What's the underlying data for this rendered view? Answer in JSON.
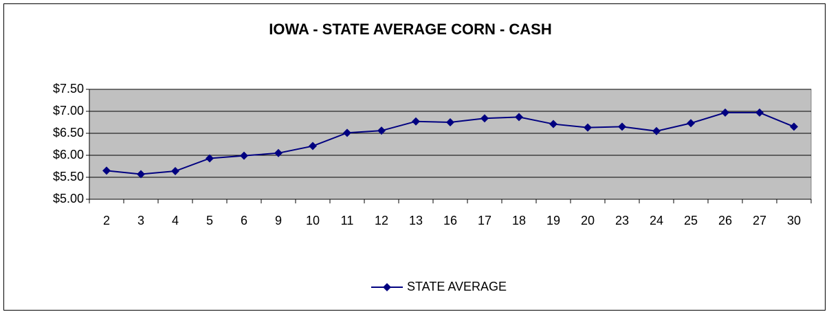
{
  "chart_data": {
    "type": "line",
    "title": "IOWA - STATE AVERAGE CORN - CASH",
    "categories": [
      "2",
      "3",
      "4",
      "5",
      "6",
      "9",
      "10",
      "11",
      "12",
      "13",
      "16",
      "17",
      "18",
      "19",
      "20",
      "23",
      "24",
      "25",
      "26",
      "27",
      "30"
    ],
    "series": [
      {
        "name": "STATE AVERAGE",
        "color": "#000080",
        "values": [
          5.65,
          5.57,
          5.64,
          5.93,
          5.99,
          6.05,
          6.21,
          6.51,
          6.56,
          6.77,
          6.75,
          6.84,
          6.87,
          6.71,
          6.63,
          6.65,
          6.55,
          6.73,
          6.97,
          6.97,
          6.65
        ]
      }
    ],
    "ylim": [
      5,
      7.5
    ],
    "yticks": [
      {
        "value": 5,
        "label": "$5.00"
      },
      {
        "value": 5.5,
        "label": "$5.50"
      },
      {
        "value": 6,
        "label": "$6.00"
      },
      {
        "value": 6.5,
        "label": "$6.50"
      },
      {
        "value": 7,
        "label": "$7.00"
      },
      {
        "value": 7.5,
        "label": "$7.50"
      }
    ],
    "grid": true,
    "legend": "bottom",
    "plot_background": "#c0c0c0"
  }
}
